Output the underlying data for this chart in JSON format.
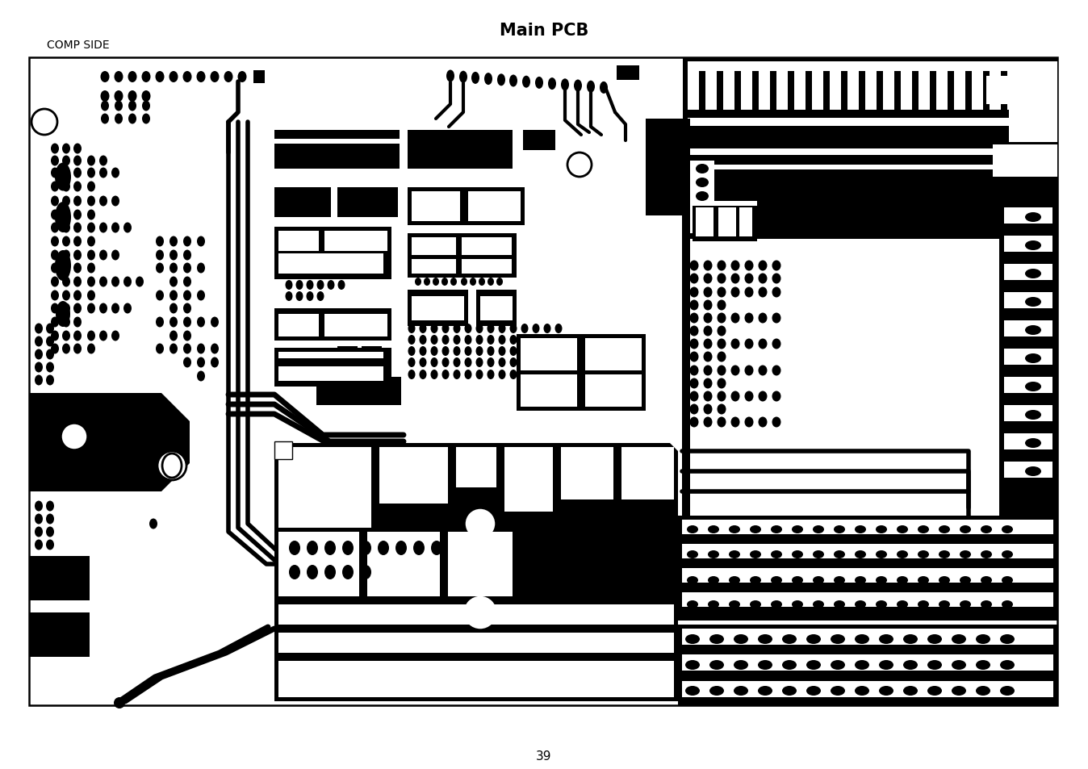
{
  "title": "Main PCB",
  "subtitle": "COMP SIDE",
  "page_number": "39",
  "bg_color": "#ffffff",
  "pcb_color": "#000000",
  "title_fontsize": 15,
  "subtitle_fontsize": 10,
  "page_fontsize": 11,
  "border_lw": 1.5
}
